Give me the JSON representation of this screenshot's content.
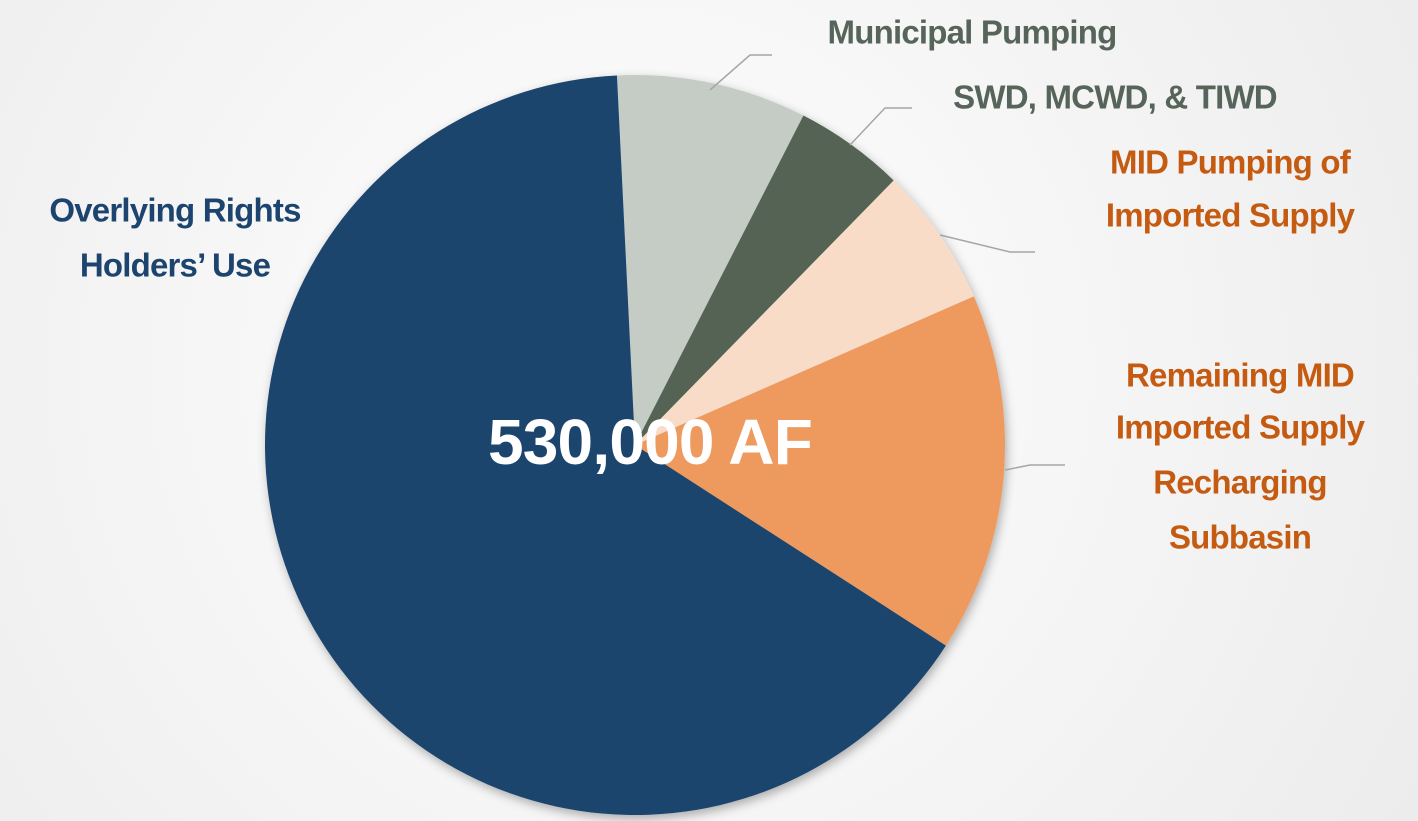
{
  "chart_data": {
    "type": "pie",
    "categories": [
      [
        "Municipal Pumping"
      ],
      [
        "SWD, MCWD, & TIWD"
      ],
      [
        "MID Pumping of",
        "Imported Supply"
      ],
      [
        "Remaining MID",
        "Imported Supply",
        "Recharging",
        "Subbasin"
      ],
      [
        "Overlying Rights",
        "Holders’ Use"
      ]
    ],
    "values": [
      8.3,
      4.8,
      6.1,
      15.7,
      65.1
    ],
    "colors": [
      "#c5ccc5",
      "#556455",
      "#f8dcc8",
      "#ee9a5e",
      "#1c446e"
    ],
    "label_colors": [
      "#56645a",
      "#56645a",
      "#c55a11",
      "#c55a11",
      "#1c446e"
    ],
    "center_label": "530,000 AF"
  }
}
